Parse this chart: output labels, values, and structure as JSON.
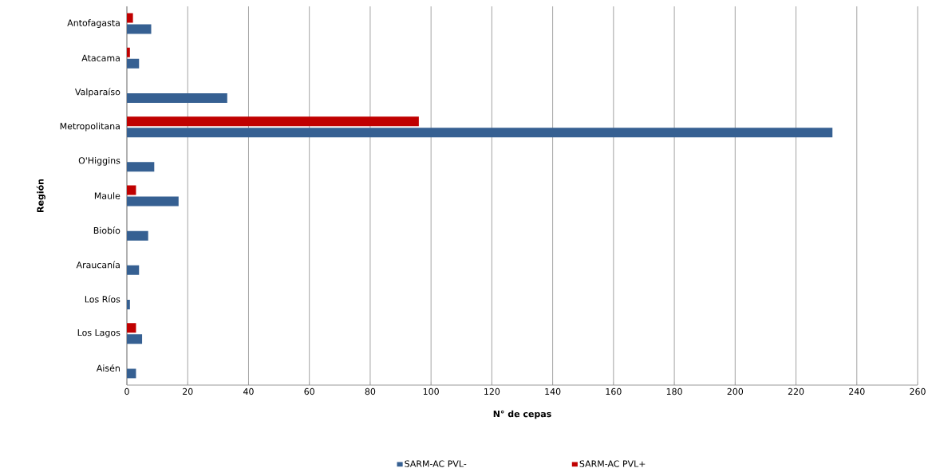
{
  "chart_data": {
    "type": "bar",
    "orientation": "horizontal",
    "xlabel": "N° de cepas",
    "ylabel": "Región",
    "categories": [
      "Antofagasta",
      "Atacama",
      "Valparaíso",
      "Metropolitana",
      "O'Higgins",
      "Maule",
      "Biobío",
      "Araucanía",
      "Los Ríos",
      "Los Lagos",
      "Aisén"
    ],
    "series": [
      {
        "name": "SARM-AC PVL-",
        "color": "#366092",
        "values": [
          8,
          4,
          33,
          232,
          9,
          17,
          7,
          4,
          1,
          5,
          3
        ]
      },
      {
        "name": "SARM-AC PVL+",
        "color": "#c00000",
        "values": [
          2,
          1,
          0,
          96,
          0,
          3,
          0,
          0,
          0,
          3,
          0
        ]
      }
    ],
    "xlim": [
      0,
      260
    ],
    "xticks": [
      0,
      20,
      40,
      60,
      80,
      100,
      120,
      140,
      160,
      180,
      200,
      220,
      240,
      260
    ],
    "grid": "x",
    "legend": "bottom"
  }
}
